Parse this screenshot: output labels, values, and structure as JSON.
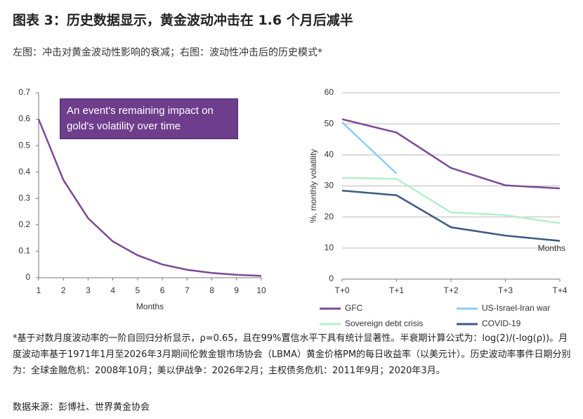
{
  "header": {
    "title": "图表 3：历史数据显示，黄金波动冲击在 1.6 个月后减半",
    "subtitle": "左图：冲击对黄金波动性影响的衰减；右图：波动性冲击后的历史模式*"
  },
  "chart_data": [
    {
      "type": "line",
      "annotation": "An event's remaining impact on gold's volatility over time",
      "x_label": "Months",
      "x": [
        1,
        2,
        3,
        4,
        5,
        6,
        7,
        8,
        9,
        10
      ],
      "values": [
        0.6,
        0.37,
        0.225,
        0.137,
        0.085,
        0.05,
        0.03,
        0.018,
        0.011,
        0.007
      ],
      "color": "#7b4a96",
      "xlim": [
        1,
        10
      ],
      "xticks": [
        1,
        2,
        3,
        4,
        5,
        6,
        7,
        8,
        9,
        10
      ],
      "ylim": [
        0,
        0.7
      ],
      "yticks": [
        0,
        0.1,
        0.2,
        0.3,
        0.4,
        0.5,
        0.6,
        0.7
      ],
      "grid": false
    },
    {
      "type": "line",
      "y_label": "%, monthly volatility",
      "annotation": "Months",
      "categories": [
        "T+0",
        "T+1",
        "T+2",
        "T+3",
        "T+4"
      ],
      "series": [
        {
          "name": "GFC",
          "color": "#7b4a96",
          "values": [
            51.5,
            47.2,
            35.8,
            30.2,
            29.2
          ]
        },
        {
          "name": "US-Israel-Iran war",
          "color": "#8ecdf0",
          "values": [
            50.5,
            34,
            null,
            null,
            null
          ]
        },
        {
          "name": "Sovereign debt crisis",
          "color": "#b4f0c8",
          "values": [
            32.6,
            32.3,
            21.5,
            20.6,
            18
          ]
        },
        {
          "name": "COVID-19",
          "color": "#3d5a80",
          "values": [
            28.5,
            27,
            16.7,
            14,
            12.3
          ]
        }
      ],
      "ylim": [
        0,
        60
      ],
      "yticks": [
        0,
        10,
        20,
        30,
        40,
        50,
        60
      ],
      "grid": true
    }
  ],
  "footnote": "*基于对数月度波动率的一阶自回归分析显示，ρ=0.65，且在99%置信水平下具有统计显著性。半衰期计算公式为：log(2)/(-log(ρ))。月度波动率基于1971年1月至2026年3月期间伦敦金银市场协会（LBMA）黄金价格PM的每日收益率（以美元计）。历史波动率事件日期分别为：全球金融危机：2008年10月；美以伊战争：2026年2月；主权债务危机：2011年9月；2020年3月。",
  "source": "数据来源：彭博社、世界黄金协会"
}
